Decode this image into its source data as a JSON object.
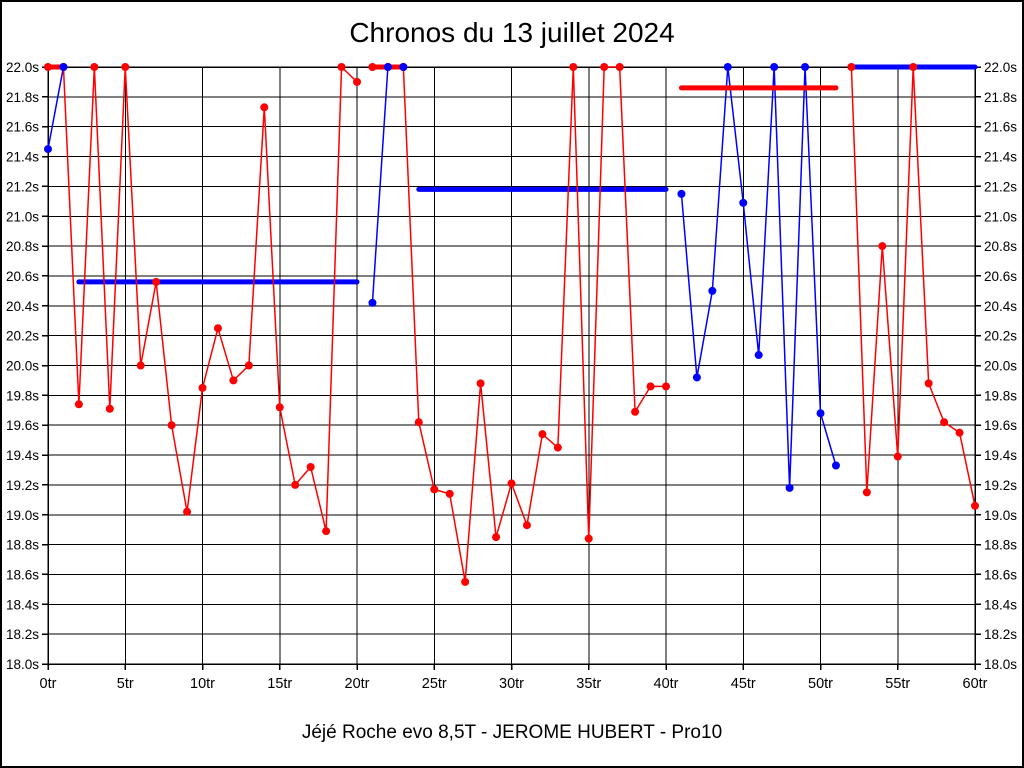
{
  "chart_data": {
    "type": "line",
    "title": "Chronos du 13 juillet 2024",
    "caption": "Jéjé Roche evo 8,5T - JEROME HUBERT - Pro10",
    "x_unit": "tr",
    "y_unit": "s",
    "xlim": [
      0,
      60
    ],
    "ylim": [
      18.0,
      22.0
    ],
    "grid": true,
    "legend": "none",
    "colors": {
      "red": "#ff0000",
      "blue": "#0000ff",
      "grid": "#000000",
      "background": "#ffffff"
    },
    "x_tick_values": [
      0,
      5,
      10,
      15,
      20,
      25,
      30,
      35,
      40,
      45,
      50,
      55,
      60
    ],
    "x_tick_labels": [
      "0tr",
      "5tr",
      "10tr",
      "15tr",
      "20tr",
      "25tr",
      "30tr",
      "35tr",
      "40tr",
      "45tr",
      "50tr",
      "55tr",
      "60tr"
    ],
    "y_tick_values": [
      22.0,
      21.8,
      21.6,
      21.4,
      21.2,
      21.0,
      20.8,
      20.6,
      20.4,
      20.2,
      20.0,
      19.8,
      19.6,
      19.4,
      19.2,
      19.0,
      18.8,
      18.6,
      18.4,
      18.2,
      18.0
    ],
    "y_tick_labels": [
      "22.0s",
      "21.8s",
      "21.6s",
      "21.4s",
      "21.2s",
      "21.0s",
      "20.8s",
      "20.6s",
      "20.4s",
      "20.2s",
      "20.0s",
      "19.8s",
      "19.6s",
      "19.4s",
      "19.2s",
      "19.0s",
      "18.8s",
      "18.6s",
      "18.4s",
      "18.2s",
      "18.0s"
    ],
    "series": [
      {
        "name": "red-stint-1",
        "color": "red",
        "points": [
          [
            0,
            22.0
          ],
          [
            1,
            22.0
          ],
          [
            2,
            19.74
          ],
          [
            3,
            22.0
          ],
          [
            4,
            19.71
          ],
          [
            5,
            22.0
          ],
          [
            6,
            20.0
          ],
          [
            7,
            20.56
          ],
          [
            8,
            19.6
          ],
          [
            9,
            19.02
          ],
          [
            10,
            19.85
          ],
          [
            11,
            20.25
          ],
          [
            12,
            19.9
          ],
          [
            13,
            20.0
          ],
          [
            14,
            21.73
          ],
          [
            15,
            19.72
          ],
          [
            16,
            19.2
          ],
          [
            17,
            19.32
          ],
          [
            18,
            18.89
          ],
          [
            19,
            22.0
          ],
          [
            20,
            21.9
          ]
        ]
      },
      {
        "name": "red-stint-2",
        "color": "red",
        "points": [
          [
            21,
            22.0
          ],
          [
            22,
            22.0
          ],
          [
            23,
            22.0
          ],
          [
            24,
            19.62
          ],
          [
            25,
            19.17
          ],
          [
            26,
            19.14
          ],
          [
            27,
            18.55
          ],
          [
            28,
            19.88
          ],
          [
            29,
            18.85
          ],
          [
            30,
            19.21
          ],
          [
            31,
            18.93
          ],
          [
            32,
            19.54
          ],
          [
            33,
            19.45
          ],
          [
            34,
            22.0
          ],
          [
            35,
            18.84
          ],
          [
            36,
            22.0
          ],
          [
            37,
            22.0
          ],
          [
            38,
            19.69
          ],
          [
            39,
            19.86
          ],
          [
            40,
            19.86
          ]
        ]
      },
      {
        "name": "red-stint-3",
        "color": "red",
        "points": [
          [
            52,
            22.0
          ],
          [
            53,
            19.15
          ],
          [
            54,
            20.8
          ],
          [
            55,
            19.39
          ],
          [
            56,
            22.0
          ],
          [
            57,
            19.88
          ],
          [
            58,
            19.62
          ],
          [
            59,
            19.55
          ],
          [
            60,
            19.06
          ]
        ]
      },
      {
        "name": "blue-stint-1",
        "color": "blue",
        "points": [
          [
            0,
            21.45
          ],
          [
            1,
            22.0
          ]
        ]
      },
      {
        "name": "blue-stint-2",
        "color": "blue",
        "points": [
          [
            21,
            20.42
          ],
          [
            22,
            22.0
          ],
          [
            23,
            22.0
          ]
        ]
      },
      {
        "name": "blue-stint-3",
        "color": "blue",
        "points": [
          [
            41,
            21.15
          ],
          [
            42,
            19.92
          ],
          [
            43,
            20.5
          ],
          [
            44,
            22.0
          ],
          [
            45,
            21.09
          ],
          [
            46,
            20.07
          ],
          [
            47,
            22.0
          ],
          [
            48,
            19.18
          ],
          [
            49,
            22.0
          ],
          [
            50,
            19.68
          ],
          [
            51,
            19.33
          ]
        ]
      }
    ],
    "average_lines": [
      {
        "name": "red-average-1",
        "color": "red",
        "x1": 0,
        "x2": 1,
        "y": 22.0
      },
      {
        "name": "red-average-2",
        "color": "red",
        "x1": 21,
        "x2": 23,
        "y": 22.0
      },
      {
        "name": "red-average-3",
        "color": "red",
        "x1": 41,
        "x2": 51,
        "y": 21.86
      },
      {
        "name": "blue-average-1",
        "color": "blue",
        "x1": 2,
        "x2": 20,
        "y": 20.56
      },
      {
        "name": "blue-average-2",
        "color": "blue",
        "x1": 24,
        "x2": 40,
        "y": 21.18
      },
      {
        "name": "blue-average-3",
        "color": "blue",
        "x1": 52,
        "x2": 60,
        "y": 22.0
      }
    ]
  }
}
